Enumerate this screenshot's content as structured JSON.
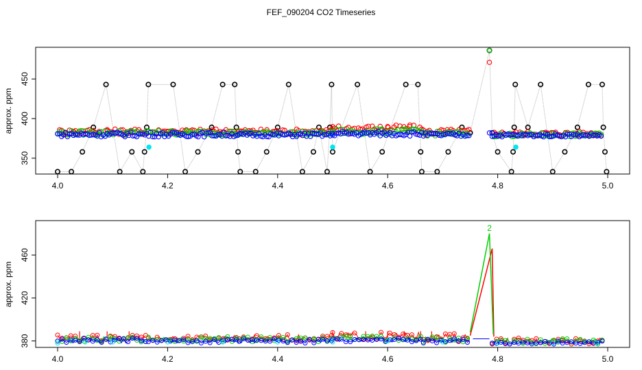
{
  "title": "FEF_090204  CO2 Timeseries",
  "colors": {
    "black": "#000000",
    "red": "#ff0000",
    "green": "#00cd00",
    "blue": "#0000ff",
    "cyan": "#00e5ee",
    "connector": "#b3b3b3"
  },
  "chart_data": [
    {
      "type": "scatter",
      "title": "",
      "xlabel": "",
      "ylabel": "approx. ppm",
      "xlim": [
        4.0,
        5.0
      ],
      "ylim": [
        330,
        490
      ],
      "x_ticks": [
        "4.0",
        "4.2",
        "4.4",
        "4.6",
        "4.8",
        "5.0"
      ],
      "y_ticks": [
        "350",
        "400",
        "450"
      ],
      "marker": "circle",
      "series": [
        {
          "color": "black",
          "connected": true,
          "points": [
            [
              4.0,
              333
            ],
            [
              4.025,
              333
            ],
            [
              4.045,
              358
            ],
            [
              4.065,
              389
            ],
            [
              4.088,
              443
            ],
            [
              4.113,
              333
            ],
            [
              4.135,
              358
            ],
            [
              4.155,
              333
            ],
            [
              4.158,
              358
            ],
            [
              4.162,
              389
            ],
            [
              4.165,
              443
            ],
            [
              4.21,
              443
            ],
            [
              4.232,
              333
            ],
            [
              4.255,
              358
            ],
            [
              4.28,
              389
            ],
            [
              4.3,
              443
            ],
            [
              4.322,
              443
            ],
            [
              4.325,
              389
            ],
            [
              4.328,
              358
            ],
            [
              4.332,
              333
            ],
            [
              4.36,
              333
            ],
            [
              4.38,
              358
            ],
            [
              4.4,
              389
            ],
            [
              4.42,
              443
            ],
            [
              4.445,
              333
            ],
            [
              4.465,
              358
            ],
            [
              4.475,
              389
            ],
            [
              4.49,
              333
            ],
            [
              4.495,
              389
            ],
            [
              4.498,
              443
            ],
            [
              4.5,
              358
            ],
            [
              4.545,
              443
            ],
            [
              4.568,
              333
            ],
            [
              4.59,
              358
            ],
            [
              4.633,
              443
            ],
            [
              4.655,
              443
            ],
            [
              4.66,
              358
            ],
            [
              4.662,
              333
            ],
            [
              4.69,
              333
            ],
            [
              4.71,
              358
            ],
            [
              4.735,
              389
            ],
            [
              4.75,
              382
            ],
            [
              4.785,
              486
            ],
            [
              4.79,
              382
            ],
            [
              4.8,
              358
            ],
            [
              4.825,
              333
            ],
            [
              4.828,
              358
            ],
            [
              4.83,
              389
            ],
            [
              4.832,
              443
            ],
            [
              4.855,
              389
            ],
            [
              4.878,
              443
            ],
            [
              4.9,
              333
            ],
            [
              4.922,
              358
            ],
            [
              4.945,
              389
            ],
            [
              4.965,
              443
            ],
            [
              4.99,
              443
            ],
            [
              4.992,
              389
            ],
            [
              4.995,
              358
            ],
            [
              4.998,
              333
            ]
          ]
        },
        {
          "color": "red",
          "segments": [
            [
              4.0,
              4.33,
              380,
              387
            ],
            [
              4.33,
              4.5,
              380,
              387
            ],
            [
              4.5,
              4.665,
              382,
              392
            ],
            [
              4.665,
              4.75,
              379,
              387
            ],
            [
              4.79,
              4.99,
              378,
              384
            ]
          ],
          "points": [
            [
              4.785,
              471
            ],
            [
              4.03,
              383
            ],
            [
              4.09,
              386
            ],
            [
              4.2,
              384
            ],
            [
              4.3,
              383
            ],
            [
              4.45,
              384
            ],
            [
              4.6,
              390
            ],
            [
              4.64,
              390
            ]
          ]
        },
        {
          "color": "green",
          "segments": [
            [
              4.0,
              4.33,
              379,
              385
            ],
            [
              4.33,
              4.5,
              379,
              384
            ],
            [
              4.5,
              4.665,
              380,
              387
            ],
            [
              4.665,
              4.75,
              378,
              384
            ],
            [
              4.79,
              4.99,
              377,
              382
            ]
          ],
          "points": [
            [
              4.785,
              486
            ]
          ]
        },
        {
          "color": "blue",
          "segments": [
            [
              4.0,
              4.33,
              377,
              383
            ],
            [
              4.33,
              4.5,
              377,
              382
            ],
            [
              4.5,
              4.665,
              378,
              384
            ],
            [
              4.665,
              4.75,
              377,
              382
            ],
            [
              4.79,
              4.99,
              377,
              381
            ]
          ],
          "points": [
            [
              4.785,
              382
            ],
            [
              4.79,
              382
            ]
          ]
        },
        {
          "color": "cyan",
          "points": [
            [
              4.166,
              364
            ],
            [
              4.5,
              364
            ],
            [
              4.833,
              364
            ]
          ]
        }
      ]
    },
    {
      "type": "line",
      "title": "",
      "xlabel": "",
      "ylabel": "approx. ppm",
      "xlim": [
        4.0,
        5.0
      ],
      "ylim": [
        374,
        492
      ],
      "x_ticks": [
        "4.0",
        "4.2",
        "4.4",
        "4.6",
        "4.8",
        "5.0"
      ],
      "y_ticks": [
        "380",
        "420",
        "460"
      ],
      "series": [
        {
          "color": "red",
          "label_glyph": "1",
          "segments": [
            [
              4.0,
              4.16,
              380,
              386
            ],
            [
              4.165,
              4.33,
              380,
              385
            ],
            [
              4.33,
              4.5,
              380,
              386
            ],
            [
              4.5,
              4.665,
              381,
              388
            ],
            [
              4.665,
              4.75,
              379,
              387
            ],
            [
              4.79,
              4.99,
              377,
              383
            ]
          ],
          "peak": [
            [
              4.75,
              385
            ],
            [
              4.79,
              466
            ],
            [
              4.793,
              384
            ]
          ],
          "spikes": [
            4.04,
            4.09,
            4.13,
            4.5,
            4.56,
            4.6,
            4.63,
            4.66,
            4.68
          ]
        },
        {
          "color": "green",
          "label_glyph": "2",
          "segments": [
            [
              4.0,
              4.16,
              379,
              384
            ],
            [
              4.165,
              4.33,
              379,
              384
            ],
            [
              4.33,
              4.5,
              379,
              384
            ],
            [
              4.5,
              4.665,
              380,
              385
            ],
            [
              4.665,
              4.75,
              378,
              384
            ],
            [
              4.79,
              4.99,
              377,
              382
            ]
          ],
          "peak": [
            [
              4.75,
              388
            ],
            [
              4.785,
              480
            ],
            [
              4.792,
              386
            ]
          ],
          "peak_label": "2"
        },
        {
          "color": "blue",
          "label_glyph": "3",
          "segments": [
            [
              4.0,
              4.16,
              378,
              383
            ],
            [
              4.165,
              4.33,
              378,
              382
            ],
            [
              4.33,
              4.5,
              378,
              382
            ],
            [
              4.5,
              4.665,
              379,
              383
            ],
            [
              4.665,
              4.75,
              378,
              382
            ],
            [
              4.79,
              4.99,
              377,
              380
            ]
          ],
          "flat": [
            [
              4.755,
              382
            ],
            [
              4.785,
              382
            ]
          ]
        },
        {
          "color": "cyan",
          "points": [
            [
              4.0,
              378
            ],
            [
              4.05,
              379
            ],
            [
              4.1,
              379
            ],
            [
              4.2,
              379
            ],
            [
              4.3,
              379
            ],
            [
              4.4,
              379
            ],
            [
              4.5,
              379
            ],
            [
              4.6,
              380
            ],
            [
              4.7,
              379
            ],
            [
              4.8,
              378
            ],
            [
              4.9,
              378
            ],
            [
              4.98,
              378
            ]
          ]
        }
      ]
    }
  ]
}
